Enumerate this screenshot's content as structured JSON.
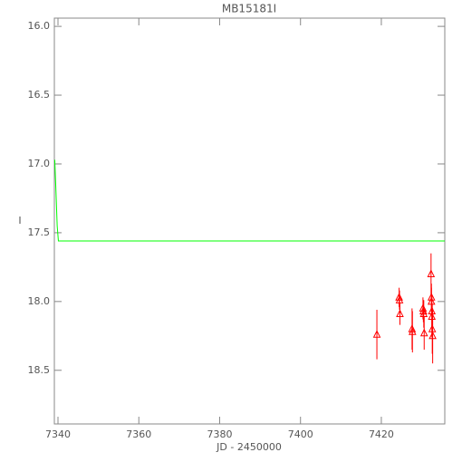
{
  "chart_data": {
    "type": "scatter",
    "title": "MB15181I",
    "x_label": "JD - 2450000",
    "y_label": "I",
    "xlim": [
      7339.1,
      7435.7
    ],
    "xticks": [
      7340,
      7360,
      7380,
      7400,
      7420
    ],
    "ylim": [
      18.89,
      15.94
    ],
    "yticks": [
      {
        "value": 16,
        "label": "16.0"
      },
      {
        "value": 16.5,
        "label": "16.5"
      },
      {
        "value": 17,
        "label": "17.0"
      },
      {
        "value": 17.5,
        "label": "17.5"
      },
      {
        "value": 18,
        "label": "18.0"
      },
      {
        "value": 18.5,
        "label": "18.5"
      }
    ],
    "series": [
      {
        "style": "line",
        "color": "#00ff00",
        "x": [
          7339.2,
          7339.5,
          7339.8,
          7340.1,
          7435.7
        ],
        "values": [
          16.97,
          17.2,
          17.45,
          17.56,
          17.56
        ]
      },
      {
        "style": "errorbar-triangle",
        "color": "#ff0000",
        "x": [
          7418.9,
          7424.4,
          7424.5,
          7424.6,
          7427.6,
          7427.7,
          7430.3,
          7430.4,
          7430.5,
          7430.6,
          7432.3,
          7432.4,
          7432.4,
          7432.5,
          7432.5,
          7432.6,
          7432.7
        ],
        "values": [
          18.24,
          17.97,
          17.99,
          18.09,
          18.2,
          18.22,
          18.05,
          18.07,
          18.09,
          18.23,
          17.8,
          17.97,
          18.0,
          18.07,
          18.11,
          18.2,
          18.25
        ],
        "errors": [
          0.18,
          0.07,
          0.07,
          0.08,
          0.15,
          0.15,
          0.08,
          0.08,
          0.1,
          0.12,
          0.15,
          0.1,
          0.1,
          0.12,
          0.15,
          0.18,
          0.2
        ]
      }
    ]
  }
}
